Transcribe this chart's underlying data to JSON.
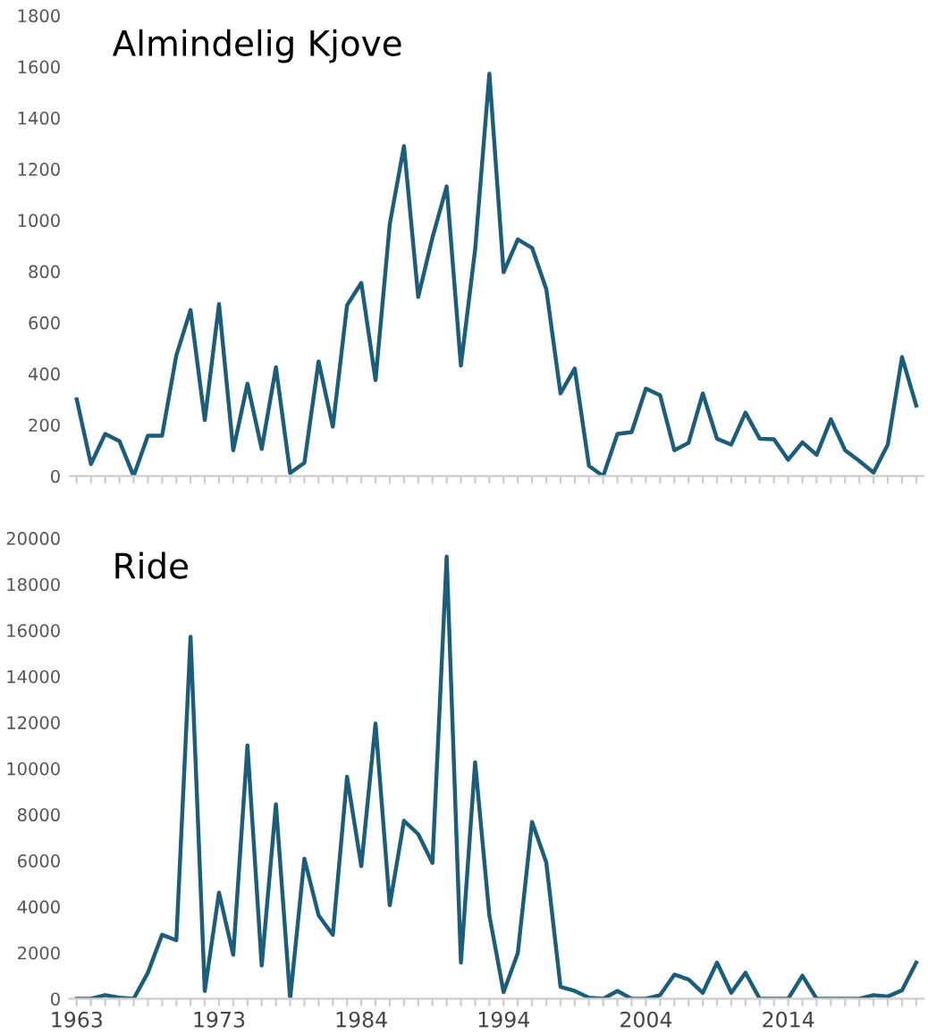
{
  "chart_data": [
    {
      "type": "line",
      "title": "Almindelig Kjove",
      "tick_labels": "y",
      "grid": false,
      "ylim": [
        0,
        1800
      ],
      "yticks": [
        0,
        200,
        400,
        600,
        800,
        1000,
        1200,
        1400,
        1600,
        1800
      ],
      "categories": [
        "1963",
        null,
        null,
        null,
        null,
        null,
        null,
        null,
        null,
        null,
        "1973",
        null,
        null,
        null,
        null,
        null,
        null,
        null,
        null,
        null,
        "1984",
        null,
        null,
        null,
        null,
        null,
        null,
        null,
        null,
        null,
        "1994",
        null,
        null,
        null,
        null,
        null,
        null,
        null,
        null,
        null,
        "2004",
        null,
        null,
        null,
        null,
        null,
        null,
        null,
        null,
        null,
        "2014",
        null,
        null,
        null,
        null,
        null,
        null,
        null,
        null,
        null
      ],
      "series": [
        {
          "color": "#1b5e7b",
          "values": [
            300,
            47,
            165,
            137,
            0,
            158,
            158,
            472,
            649,
            219,
            672,
            101,
            361,
            106,
            425,
            12,
            52,
            448,
            193,
            668,
            755,
            375,
            984,
            1290,
            700,
            932,
            1132,
            432,
            885,
            1573,
            797,
            925,
            892,
            731,
            323,
            420,
            40,
            0,
            165,
            172,
            342,
            316,
            101,
            130,
            323,
            146,
            123,
            248,
            146,
            144,
            64,
            132,
            83,
            222,
            101,
            59,
            14,
            123,
            465,
            276
          ]
        }
      ]
    },
    {
      "type": "line",
      "title": "Ride",
      "grid": false,
      "ylim": [
        0,
        20000
      ],
      "yticks": [
        0,
        2000,
        4000,
        6000,
        8000,
        10000,
        12000,
        14000,
        16000,
        18000,
        20000
      ],
      "categories": [
        "1963",
        null,
        null,
        null,
        null,
        null,
        null,
        null,
        null,
        null,
        "1973",
        null,
        null,
        null,
        null,
        null,
        null,
        null,
        null,
        null,
        "1984",
        null,
        null,
        null,
        null,
        null,
        null,
        null,
        null,
        null,
        "1994",
        null,
        null,
        null,
        null,
        null,
        null,
        null,
        null,
        null,
        "2004",
        null,
        null,
        null,
        null,
        null,
        null,
        null,
        null,
        null,
        "2014",
        null,
        null,
        null,
        null,
        null,
        null,
        null,
        null,
        null
      ],
      "series": [
        {
          "color": "#1b5e7b",
          "values": [
            0,
            0,
            160,
            50,
            0,
            1130,
            2780,
            2540,
            15720,
            340,
            4610,
            1910,
            11000,
            1440,
            8440,
            0,
            6080,
            3620,
            2780,
            9640,
            5760,
            11950,
            4060,
            7730,
            7150,
            5900,
            19200,
            1570,
            10270,
            3620,
            290,
            1990,
            7680,
            5920,
            520,
            340,
            50,
            0,
            340,
            0,
            0,
            160,
            1050,
            840,
            260,
            1570,
            260,
            1130,
            0,
            0,
            0,
            1000,
            0,
            0,
            0,
            0,
            160,
            100,
            370,
            1570
          ]
        }
      ]
    }
  ]
}
